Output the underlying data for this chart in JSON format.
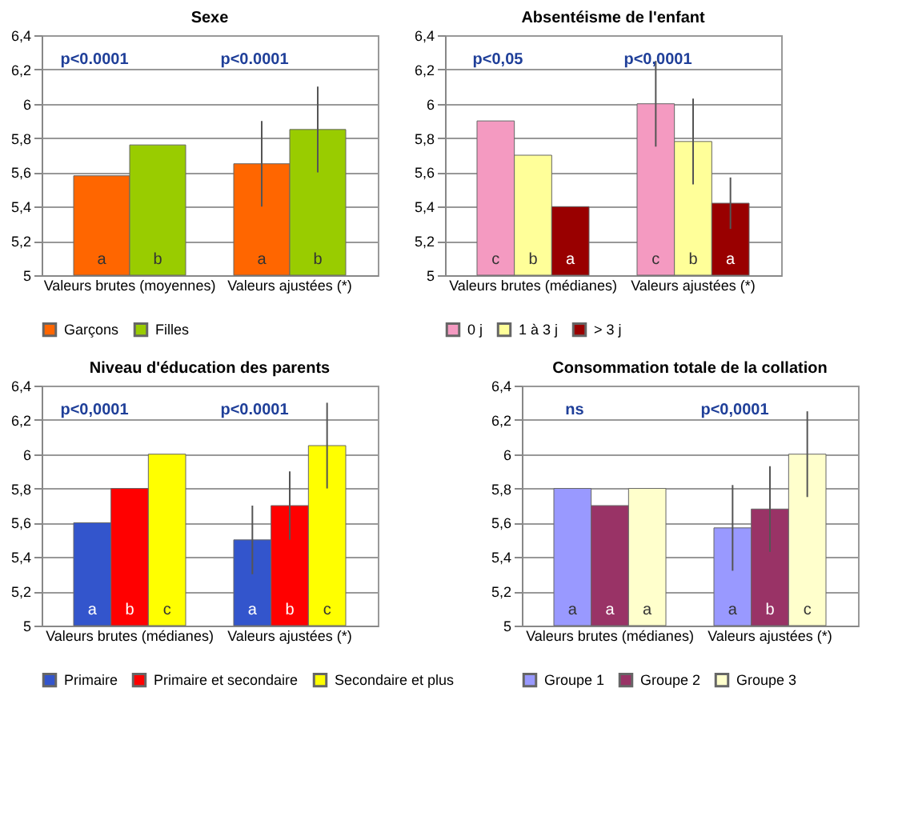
{
  "chart_data": [
    {
      "type": "bar",
      "title": "Sexe",
      "categories": [
        "Valeurs brutes (moyennes)",
        "Valeurs ajustées (*)"
      ],
      "series": [
        {
          "name": "Garçons",
          "color": "#ff6600",
          "values": [
            5.58,
            5.65
          ],
          "errors": [
            null,
            0.25
          ],
          "value_labels": [
            "a",
            "a"
          ]
        },
        {
          "name": "Filles",
          "color": "#99cc00",
          "values": [
            5.76,
            5.85
          ],
          "errors": [
            null,
            0.25
          ],
          "value_labels": [
            "b",
            "b"
          ]
        }
      ],
      "ylim": [
        5,
        6.4
      ],
      "yticks": [
        5,
        {
          "value": 5.2,
          "label": "5,2"
        },
        {
          "value": 5.4,
          "label": "5,4"
        },
        {
          "value": 5.6,
          "label": "5,6"
        },
        {
          "value": 5.8,
          "label": "5,8"
        },
        6,
        {
          "value": 6.2,
          "label": "6,2"
        },
        {
          "value": 6.4,
          "label": "6,4"
        }
      ],
      "grid": "y",
      "legend": "bottom",
      "annotations": [
        "p<0.0001",
        "p<0.0001"
      ]
    },
    {
      "type": "bar",
      "title": "Absentéisme de l'enfant",
      "categories": [
        "Valeurs brutes (médianes)",
        "Valeurs ajustées (*)"
      ],
      "series": [
        {
          "name": "0 j",
          "color": "#f49ac1",
          "values": [
            5.9,
            6.0
          ],
          "errors": [
            null,
            0.25
          ],
          "value_labels": [
            "c",
            "c"
          ]
        },
        {
          "name": "1 à 3 j",
          "color": "#ffff99",
          "values": [
            5.7,
            5.78
          ],
          "errors": [
            null,
            0.25
          ],
          "value_labels": [
            "b",
            "b"
          ]
        },
        {
          "name": "> 3 j",
          "color": "#990000",
          "values": [
            5.4,
            5.42
          ],
          "errors": [
            null,
            0.15
          ],
          "value_labels": [
            "a",
            "a"
          ]
        }
      ],
      "ylim": [
        5,
        6.4
      ],
      "yticks": [
        5,
        {
          "value": 5.2,
          "label": "5,2"
        },
        {
          "value": 5.4,
          "label": "5,4"
        },
        {
          "value": 5.6,
          "label": "5,6"
        },
        {
          "value": 5.8,
          "label": "5,8"
        },
        6,
        {
          "value": 6.2,
          "label": "6,2"
        },
        {
          "value": 6.4,
          "label": "6,4"
        }
      ],
      "grid": "y",
      "legend": "bottom",
      "annotations": [
        "p<0,05",
        "p<0,0001"
      ]
    },
    {
      "type": "bar",
      "title": "Niveau d'éducation des parents",
      "categories": [
        "Valeurs brutes (médianes)",
        "Valeurs ajustées (*)"
      ],
      "series": [
        {
          "name": "Primaire",
          "color": "#3355cc",
          "values": [
            5.6,
            5.5
          ],
          "errors": [
            null,
            0.2
          ],
          "value_labels": [
            "a",
            "a"
          ]
        },
        {
          "name": "Primaire et secondaire",
          "color": "#ff0000",
          "values": [
            5.8,
            5.7
          ],
          "errors": [
            null,
            0.2
          ],
          "value_labels": [
            "b",
            "b"
          ]
        },
        {
          "name": "Secondaire et plus",
          "color": "#ffff00",
          "values": [
            6.0,
            6.05
          ],
          "errors": [
            null,
            0.25
          ],
          "value_labels": [
            "c",
            "c"
          ]
        }
      ],
      "ylim": [
        5,
        6.4
      ],
      "yticks": [
        5,
        {
          "value": 5.2,
          "label": "5,2"
        },
        {
          "value": 5.4,
          "label": "5,4"
        },
        {
          "value": 5.6,
          "label": "5,6"
        },
        {
          "value": 5.8,
          "label": "5,8"
        },
        6,
        {
          "value": 6.2,
          "label": "6,2"
        },
        {
          "value": 6.4,
          "label": "6,4"
        }
      ],
      "grid": "y",
      "legend": "bottom",
      "annotations": [
        "p<0,0001",
        "p<0.0001"
      ]
    },
    {
      "type": "bar",
      "title": "Consommation totale de la collation",
      "categories": [
        "Valeurs brutes (médianes)",
        "Valeurs ajustées (*)"
      ],
      "series": [
        {
          "name": "Groupe 1",
          "color": "#9999ff",
          "values": [
            5.8,
            5.57
          ],
          "errors": [
            null,
            0.25
          ],
          "value_labels": [
            "a",
            "a"
          ]
        },
        {
          "name": "Groupe 2",
          "color": "#993366",
          "values": [
            5.7,
            5.68
          ],
          "errors": [
            null,
            0.25
          ],
          "value_labels": [
            "a",
            "b"
          ]
        },
        {
          "name": "Groupe 3",
          "color": "#ffffcc",
          "values": [
            5.8,
            6.0
          ],
          "errors": [
            null,
            0.25
          ],
          "value_labels": [
            "a",
            "c"
          ]
        }
      ],
      "ylim": [
        5,
        6.4
      ],
      "yticks": [
        5,
        {
          "value": 5.2,
          "label": "5,2"
        },
        {
          "value": 5.4,
          "label": "5,4"
        },
        {
          "value": 5.6,
          "label": "5,6"
        },
        {
          "value": 5.8,
          "label": "5,8"
        },
        6,
        {
          "value": 6.2,
          "label": "6,2"
        },
        {
          "value": 6.4,
          "label": "6,4"
        }
      ],
      "grid": "y",
      "legend": "bottom",
      "annotations": [
        "ns",
        "p<0,0001"
      ]
    }
  ]
}
